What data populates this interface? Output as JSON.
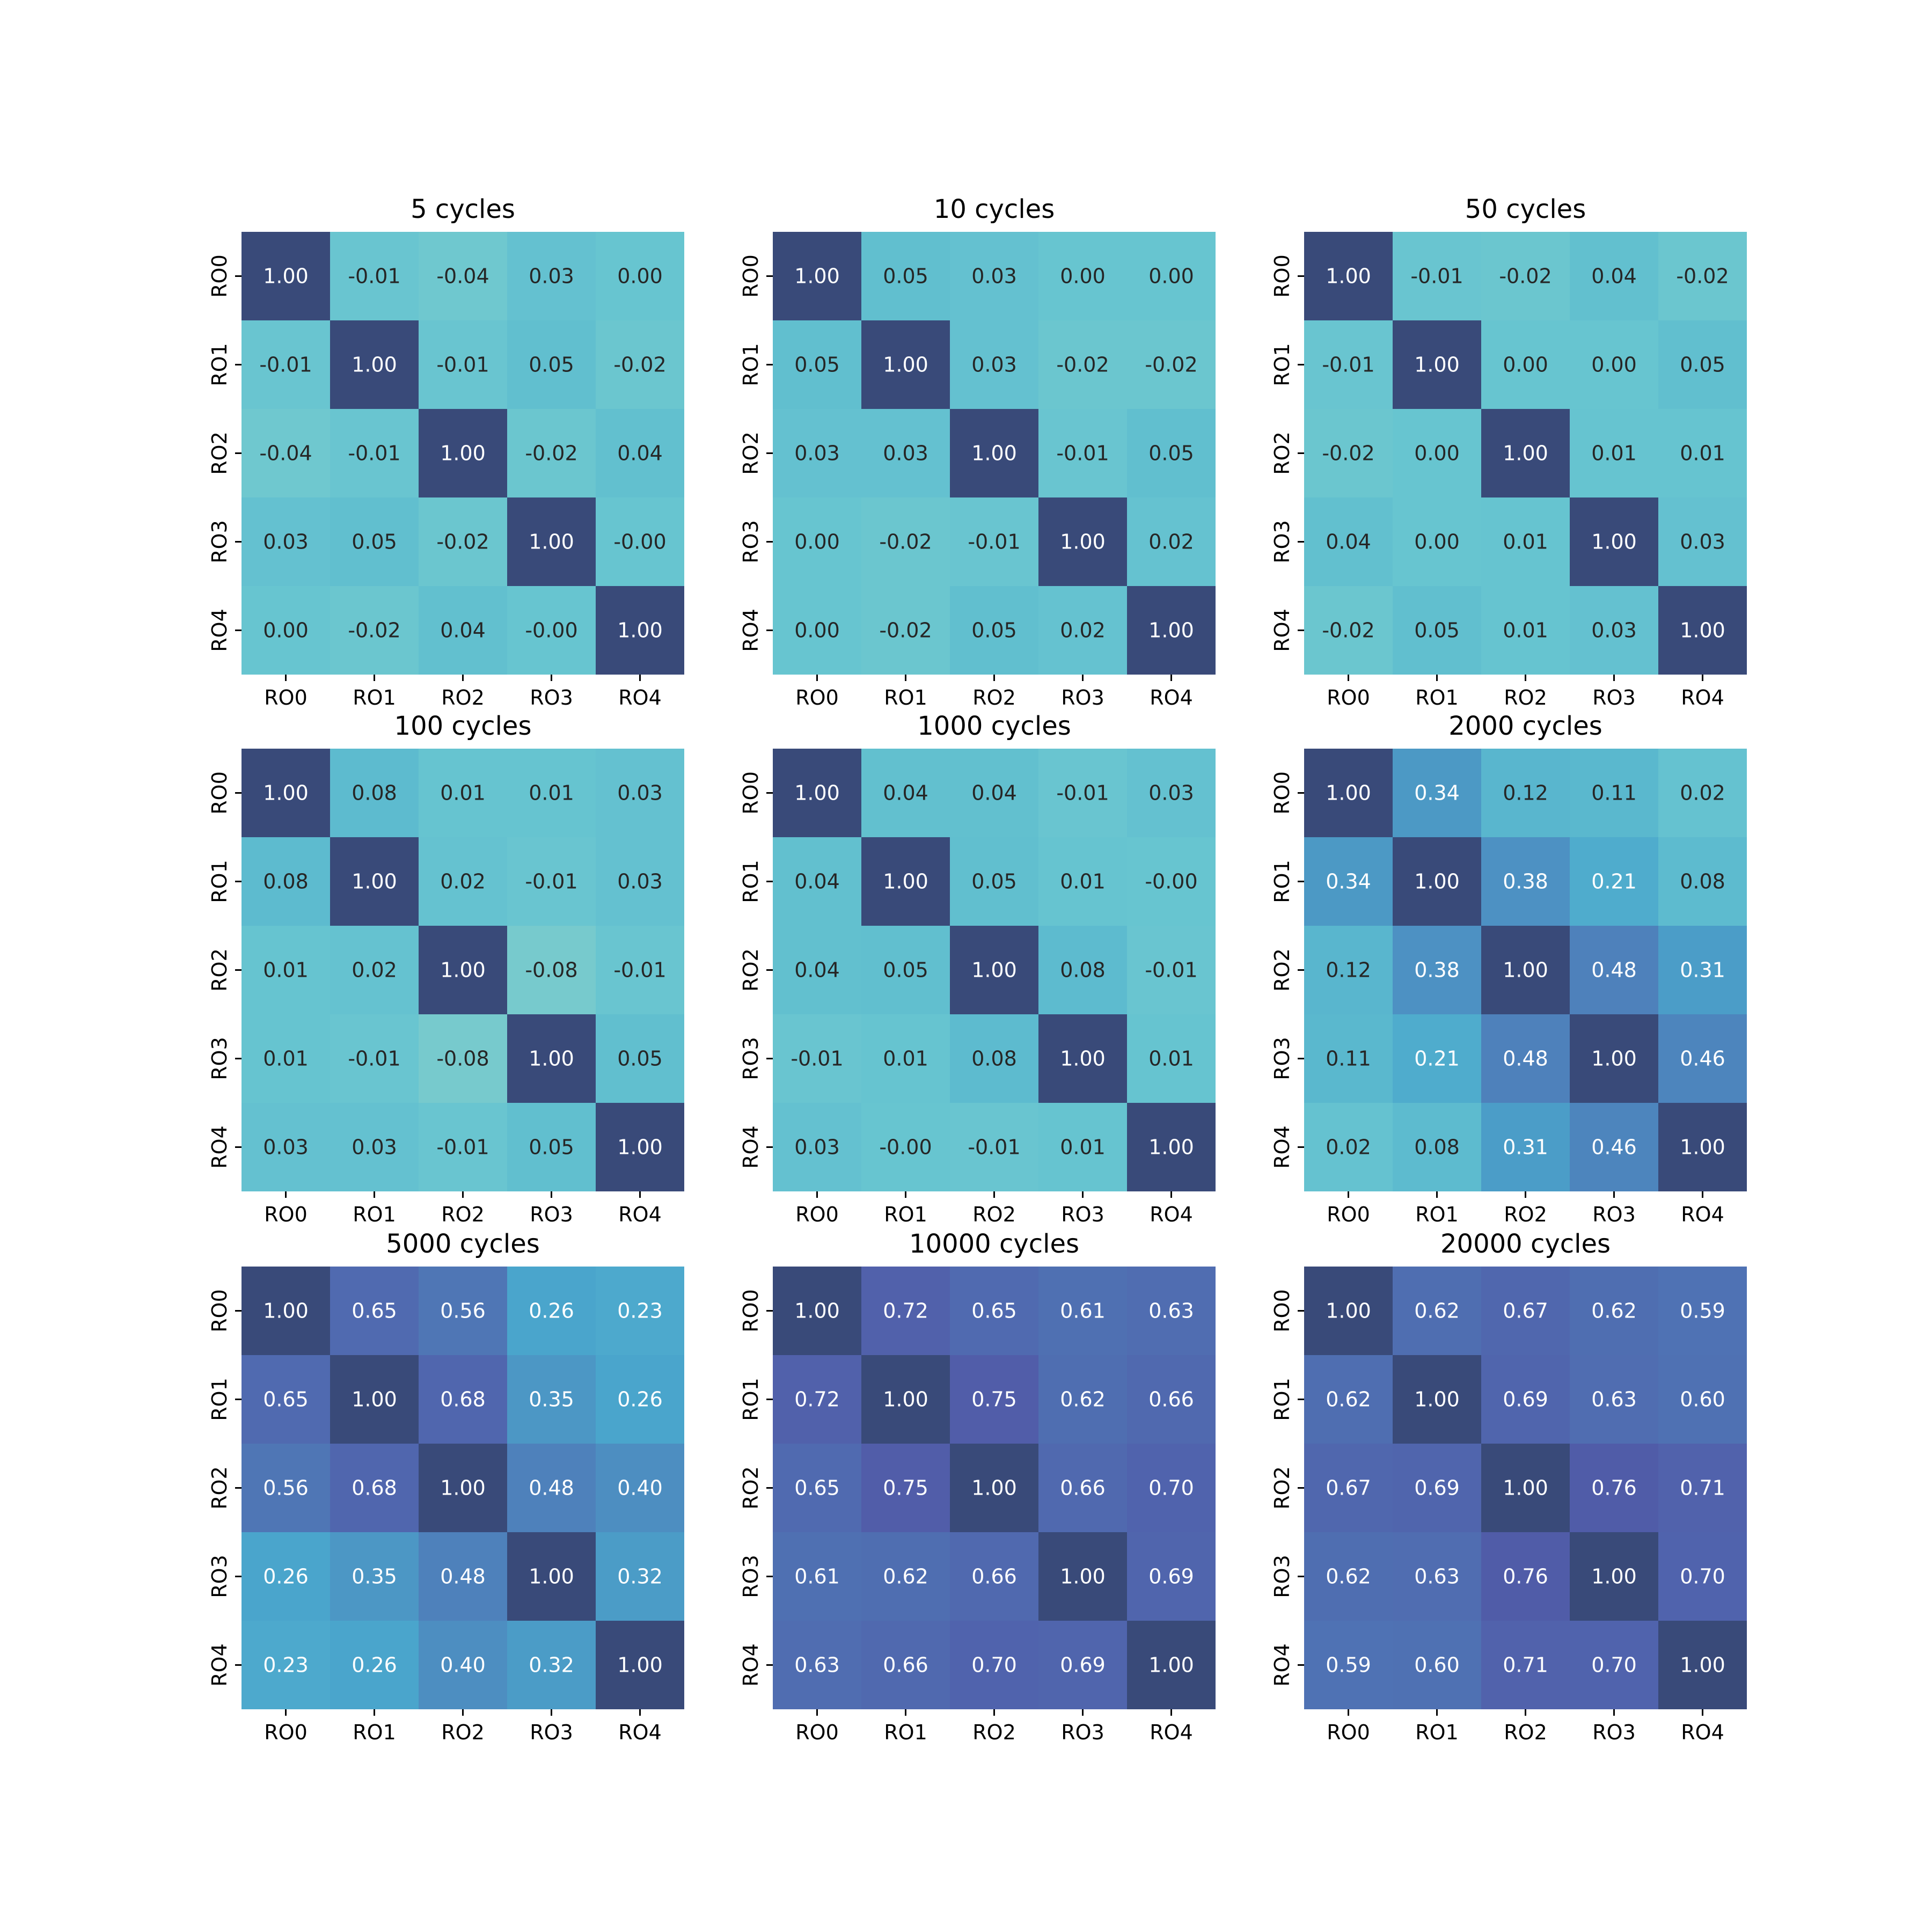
{
  "chart_data": [
    {
      "type": "heatmap",
      "title": "5 cycles",
      "x_labels": [
        "RO0",
        "RO1",
        "RO2",
        "RO3",
        "RO4"
      ],
      "y_labels": [
        "RO0",
        "RO1",
        "RO2",
        "RO3",
        "RO4"
      ],
      "values": [
        [
          1.0,
          -0.01,
          -0.04,
          0.03,
          0.0
        ],
        [
          -0.01,
          1.0,
          -0.01,
          0.05,
          -0.02
        ],
        [
          -0.04,
          -0.01,
          1.0,
          -0.02,
          0.04
        ],
        [
          0.03,
          0.05,
          -0.02,
          1.0,
          -0.0
        ],
        [
          0.0,
          -0.02,
          0.04,
          -0.0,
          1.0
        ]
      ],
      "labels": [
        [
          "1.00",
          "-0.01",
          "-0.04",
          "0.03",
          "0.00"
        ],
        [
          "-0.01",
          "1.00",
          "-0.01",
          "0.05",
          "-0.02"
        ],
        [
          "-0.04",
          "-0.01",
          "1.00",
          "-0.02",
          "0.04"
        ],
        [
          "0.03",
          "0.05",
          "-0.02",
          "1.00",
          "-0.00"
        ],
        [
          "0.00",
          "-0.02",
          "0.04",
          "-0.00",
          "1.00"
        ]
      ]
    },
    {
      "type": "heatmap",
      "title": "10 cycles",
      "x_labels": [
        "RO0",
        "RO1",
        "RO2",
        "RO3",
        "RO4"
      ],
      "y_labels": [
        "RO0",
        "RO1",
        "RO2",
        "RO3",
        "RO4"
      ],
      "values": [
        [
          1.0,
          0.05,
          0.03,
          0.0,
          0.0
        ],
        [
          0.05,
          1.0,
          0.03,
          -0.02,
          -0.02
        ],
        [
          0.03,
          0.03,
          1.0,
          -0.01,
          0.05
        ],
        [
          0.0,
          -0.02,
          -0.01,
          1.0,
          0.02
        ],
        [
          0.0,
          -0.02,
          0.05,
          0.02,
          1.0
        ]
      ],
      "labels": [
        [
          "1.00",
          "0.05",
          "0.03",
          "0.00",
          "0.00"
        ],
        [
          "0.05",
          "1.00",
          "0.03",
          "-0.02",
          "-0.02"
        ],
        [
          "0.03",
          "0.03",
          "1.00",
          "-0.01",
          "0.05"
        ],
        [
          "0.00",
          "-0.02",
          "-0.01",
          "1.00",
          "0.02"
        ],
        [
          "0.00",
          "-0.02",
          "0.05",
          "0.02",
          "1.00"
        ]
      ]
    },
    {
      "type": "heatmap",
      "title": "50 cycles",
      "x_labels": [
        "RO0",
        "RO1",
        "RO2",
        "RO3",
        "RO4"
      ],
      "y_labels": [
        "RO0",
        "RO1",
        "RO2",
        "RO3",
        "RO4"
      ],
      "values": [
        [
          1.0,
          -0.01,
          -0.02,
          0.04,
          -0.02
        ],
        [
          -0.01,
          1.0,
          0.0,
          0.0,
          0.05
        ],
        [
          -0.02,
          0.0,
          1.0,
          0.01,
          0.01
        ],
        [
          0.04,
          0.0,
          0.01,
          1.0,
          0.03
        ],
        [
          -0.02,
          0.05,
          0.01,
          0.03,
          1.0
        ]
      ],
      "labels": [
        [
          "1.00",
          "-0.01",
          "-0.02",
          "0.04",
          "-0.02"
        ],
        [
          "-0.01",
          "1.00",
          "0.00",
          "0.00",
          "0.05"
        ],
        [
          "-0.02",
          "0.00",
          "1.00",
          "0.01",
          "0.01"
        ],
        [
          "0.04",
          "0.00",
          "0.01",
          "1.00",
          "0.03"
        ],
        [
          "-0.02",
          "0.05",
          "0.01",
          "0.03",
          "1.00"
        ]
      ]
    },
    {
      "type": "heatmap",
      "title": "100 cycles",
      "x_labels": [
        "RO0",
        "RO1",
        "RO2",
        "RO3",
        "RO4"
      ],
      "y_labels": [
        "RO0",
        "RO1",
        "RO2",
        "RO3",
        "RO4"
      ],
      "values": [
        [
          1.0,
          0.08,
          0.01,
          0.01,
          0.03
        ],
        [
          0.08,
          1.0,
          0.02,
          -0.01,
          0.03
        ],
        [
          0.01,
          0.02,
          1.0,
          -0.08,
          -0.01
        ],
        [
          0.01,
          -0.01,
          -0.08,
          1.0,
          0.05
        ],
        [
          0.03,
          0.03,
          -0.01,
          0.05,
          1.0
        ]
      ],
      "labels": [
        [
          "1.00",
          "0.08",
          "0.01",
          "0.01",
          "0.03"
        ],
        [
          "0.08",
          "1.00",
          "0.02",
          "-0.01",
          "0.03"
        ],
        [
          "0.01",
          "0.02",
          "1.00",
          "-0.08",
          "-0.01"
        ],
        [
          "0.01",
          "-0.01",
          "-0.08",
          "1.00",
          "0.05"
        ],
        [
          "0.03",
          "0.03",
          "-0.01",
          "0.05",
          "1.00"
        ]
      ]
    },
    {
      "type": "heatmap",
      "title": "1000 cycles",
      "x_labels": [
        "RO0",
        "RO1",
        "RO2",
        "RO3",
        "RO4"
      ],
      "y_labels": [
        "RO0",
        "RO1",
        "RO2",
        "RO3",
        "RO4"
      ],
      "values": [
        [
          1.0,
          0.04,
          0.04,
          -0.01,
          0.03
        ],
        [
          0.04,
          1.0,
          0.05,
          0.01,
          -0.0
        ],
        [
          0.04,
          0.05,
          1.0,
          0.08,
          -0.01
        ],
        [
          -0.01,
          0.01,
          0.08,
          1.0,
          0.01
        ],
        [
          0.03,
          -0.0,
          -0.01,
          0.01,
          1.0
        ]
      ],
      "labels": [
        [
          "1.00",
          "0.04",
          "0.04",
          "-0.01",
          "0.03"
        ],
        [
          "0.04",
          "1.00",
          "0.05",
          "0.01",
          "-0.00"
        ],
        [
          "0.04",
          "0.05",
          "1.00",
          "0.08",
          "-0.01"
        ],
        [
          "-0.01",
          "0.01",
          "0.08",
          "1.00",
          "0.01"
        ],
        [
          "0.03",
          "-0.00",
          "-0.01",
          "0.01",
          "1.00"
        ]
      ]
    },
    {
      "type": "heatmap",
      "title": "2000 cycles",
      "x_labels": [
        "RO0",
        "RO1",
        "RO2",
        "RO3",
        "RO4"
      ],
      "y_labels": [
        "RO0",
        "RO1",
        "RO2",
        "RO3",
        "RO4"
      ],
      "values": [
        [
          1.0,
          0.34,
          0.12,
          0.11,
          0.02
        ],
        [
          0.34,
          1.0,
          0.38,
          0.21,
          0.08
        ],
        [
          0.12,
          0.38,
          1.0,
          0.48,
          0.31
        ],
        [
          0.11,
          0.21,
          0.48,
          1.0,
          0.46
        ],
        [
          0.02,
          0.08,
          0.31,
          0.46,
          1.0
        ]
      ],
      "labels": [
        [
          "1.00",
          "0.34",
          "0.12",
          "0.11",
          "0.02"
        ],
        [
          "0.34",
          "1.00",
          "0.38",
          "0.21",
          "0.08"
        ],
        [
          "0.12",
          "0.38",
          "1.00",
          "0.48",
          "0.31"
        ],
        [
          "0.11",
          "0.21",
          "0.48",
          "1.00",
          "0.46"
        ],
        [
          "0.02",
          "0.08",
          "0.31",
          "0.46",
          "1.00"
        ]
      ]
    },
    {
      "type": "heatmap",
      "title": "5000 cycles",
      "x_labels": [
        "RO0",
        "RO1",
        "RO2",
        "RO3",
        "RO4"
      ],
      "y_labels": [
        "RO0",
        "RO1",
        "RO2",
        "RO3",
        "RO4"
      ],
      "values": [
        [
          1.0,
          0.65,
          0.56,
          0.26,
          0.23
        ],
        [
          0.65,
          1.0,
          0.68,
          0.35,
          0.26
        ],
        [
          0.56,
          0.68,
          1.0,
          0.48,
          0.4
        ],
        [
          0.26,
          0.35,
          0.48,
          1.0,
          0.32
        ],
        [
          0.23,
          0.26,
          0.4,
          0.32,
          1.0
        ]
      ],
      "labels": [
        [
          "1.00",
          "0.65",
          "0.56",
          "0.26",
          "0.23"
        ],
        [
          "0.65",
          "1.00",
          "0.68",
          "0.35",
          "0.26"
        ],
        [
          "0.56",
          "0.68",
          "1.00",
          "0.48",
          "0.40"
        ],
        [
          "0.26",
          "0.35",
          "0.48",
          "1.00",
          "0.32"
        ],
        [
          "0.23",
          "0.26",
          "0.40",
          "0.32",
          "1.00"
        ]
      ]
    },
    {
      "type": "heatmap",
      "title": "10000 cycles",
      "x_labels": [
        "RO0",
        "RO1",
        "RO2",
        "RO3",
        "RO4"
      ],
      "y_labels": [
        "RO0",
        "RO1",
        "RO2",
        "RO3",
        "RO4"
      ],
      "values": [
        [
          1.0,
          0.72,
          0.65,
          0.61,
          0.63
        ],
        [
          0.72,
          1.0,
          0.75,
          0.62,
          0.66
        ],
        [
          0.65,
          0.75,
          1.0,
          0.66,
          0.7
        ],
        [
          0.61,
          0.62,
          0.66,
          1.0,
          0.69
        ],
        [
          0.63,
          0.66,
          0.7,
          0.69,
          1.0
        ]
      ],
      "labels": [
        [
          "1.00",
          "0.72",
          "0.65",
          "0.61",
          "0.63"
        ],
        [
          "0.72",
          "1.00",
          "0.75",
          "0.62",
          "0.66"
        ],
        [
          "0.65",
          "0.75",
          "1.00",
          "0.66",
          "0.70"
        ],
        [
          "0.61",
          "0.62",
          "0.66",
          "1.00",
          "0.69"
        ],
        [
          "0.63",
          "0.66",
          "0.70",
          "0.69",
          "1.00"
        ]
      ]
    },
    {
      "type": "heatmap",
      "title": "20000 cycles",
      "x_labels": [
        "RO0",
        "RO1",
        "RO2",
        "RO3",
        "RO4"
      ],
      "y_labels": [
        "RO0",
        "RO1",
        "RO2",
        "RO3",
        "RO4"
      ],
      "values": [
        [
          1.0,
          0.62,
          0.67,
          0.62,
          0.59
        ],
        [
          0.62,
          1.0,
          0.69,
          0.63,
          0.6
        ],
        [
          0.67,
          0.69,
          1.0,
          0.76,
          0.71
        ],
        [
          0.62,
          0.63,
          0.76,
          1.0,
          0.7
        ],
        [
          0.59,
          0.6,
          0.71,
          0.7,
          1.0
        ]
      ],
      "labels": [
        [
          "1.00",
          "0.62",
          "0.67",
          "0.62",
          "0.59"
        ],
        [
          "0.62",
          "1.00",
          "0.69",
          "0.63",
          "0.60"
        ],
        [
          "0.67",
          "0.69",
          "1.00",
          "0.76",
          "0.71"
        ],
        [
          "0.62",
          "0.63",
          "0.76",
          "1.00",
          "0.70"
        ],
        [
          "0.59",
          "0.60",
          "0.71",
          "0.70",
          "1.00"
        ]
      ]
    }
  ],
  "colormap": "YlGnBu",
  "colorbar": false,
  "value_range": [
    -1,
    1
  ],
  "grid": false
}
